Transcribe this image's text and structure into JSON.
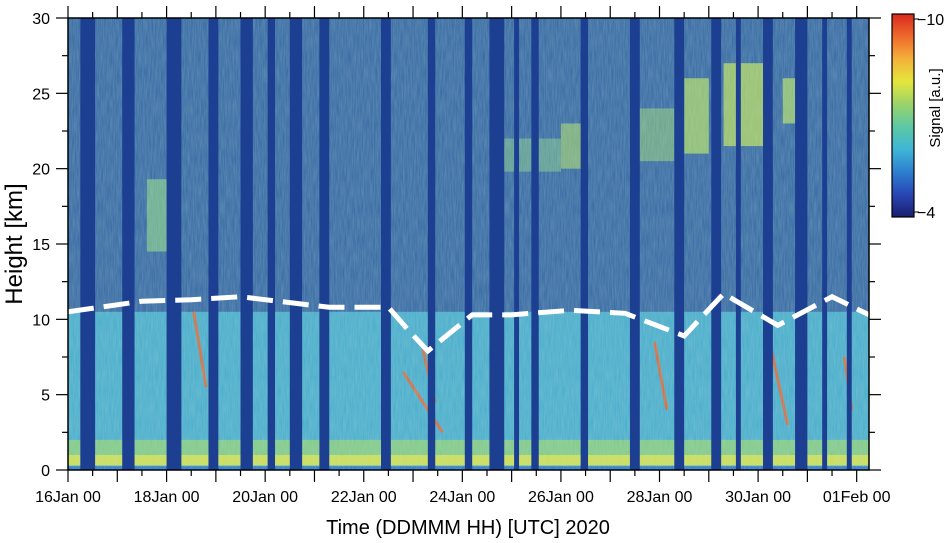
{
  "chart_data": {
    "type": "heatmap",
    "xlabel": "Time (DDMMM HH) [UTC] 2020",
    "ylabel": "Height [km]",
    "x_tick_labels": [
      "16Jan 00",
      "18Jan 00",
      "20Jan 00",
      "22Jan 00",
      "24Jan 00",
      "26Jan 00",
      "28Jan 00",
      "30Jan 00",
      "01Feb 00"
    ],
    "x_range_days": [
      0,
      16.25
    ],
    "ylim": [
      0,
      30
    ],
    "y_ticks": [
      0,
      5,
      10,
      15,
      20,
      25,
      30
    ],
    "colorbar": {
      "label": "Signal [a.u.]",
      "tick_labels": [
        "−10",
        "−4"
      ],
      "range": [
        -10,
        -4
      ],
      "placement": "top-right",
      "colors": [
        "#1a1e6e",
        "#2846b4",
        "#2d7fd0",
        "#3fb6d6",
        "#5cc8a4",
        "#9ad36a",
        "#e4e63c",
        "#f4b13a",
        "#ee6a2c",
        "#d92a1f"
      ]
    },
    "series": [
      {
        "style": "dashed-white",
        "x": [
          0,
          1.5,
          2.5,
          3.5,
          5.3,
          6.5,
          6.9,
          7.3,
          8.2,
          9.0,
          10.2,
          11.3,
          12.5,
          13.3,
          14.4,
          15.5,
          16.25
        ],
        "y": [
          10.5,
          11.2,
          11.3,
          11.5,
          10.8,
          10.8,
          9.3,
          7.9,
          10.3,
          10.3,
          10.6,
          10.4,
          8.9,
          11.7,
          9.6,
          11.5,
          10.3
        ]
      }
    ],
    "gaps_days": [
      [
        0.25,
        0.55
      ],
      [
        1.1,
        1.35
      ],
      [
        2.0,
        2.3
      ],
      [
        2.85,
        3.05
      ],
      [
        3.5,
        3.75
      ],
      [
        4.05,
        4.2
      ],
      [
        4.5,
        4.75
      ],
      [
        5.1,
        5.3
      ],
      [
        6.35,
        6.55
      ],
      [
        7.3,
        7.45
      ],
      [
        8.05,
        8.2
      ],
      [
        8.55,
        8.85
      ],
      [
        9.05,
        9.15
      ],
      [
        9.4,
        9.55
      ],
      [
        10.4,
        10.55
      ],
      [
        11.4,
        11.6
      ],
      [
        12.3,
        12.5
      ],
      [
        13.05,
        13.25
      ],
      [
        13.55,
        13.65
      ],
      [
        14.1,
        14.3
      ],
      [
        14.75,
        15.0
      ],
      [
        15.3,
        15.4
      ],
      [
        15.8,
        15.9
      ]
    ]
  }
}
